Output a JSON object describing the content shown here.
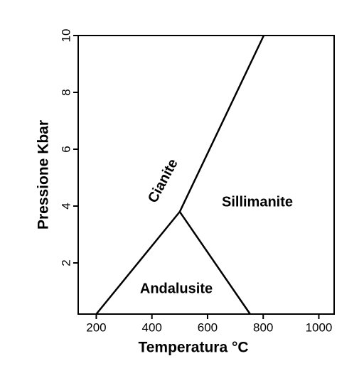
{
  "chart_data": {
    "type": "line",
    "x_label": "Temperatura °C",
    "y_label": "Pressione Kbar",
    "xlim": [
      135,
      1055
    ],
    "ylim": [
      0.2,
      10
    ],
    "xticks": [
      200,
      400,
      600,
      800,
      1000
    ],
    "yticks": [
      2,
      4,
      6,
      8,
      10
    ],
    "series": [
      {
        "color": "#000000",
        "x": [
          200,
          500
        ],
        "values": [
          0.2,
          3.8
        ]
      },
      {
        "color": "#000000",
        "x": [
          500,
          753
        ],
        "values": [
          3.8,
          0.2
        ]
      },
      {
        "color": "#000000",
        "x": [
          500,
          802
        ],
        "values": [
          3.8,
          10
        ]
      }
    ],
    "annotations": [
      "Cianite",
      "Sillimanite",
      "Andalusite"
    ]
  }
}
